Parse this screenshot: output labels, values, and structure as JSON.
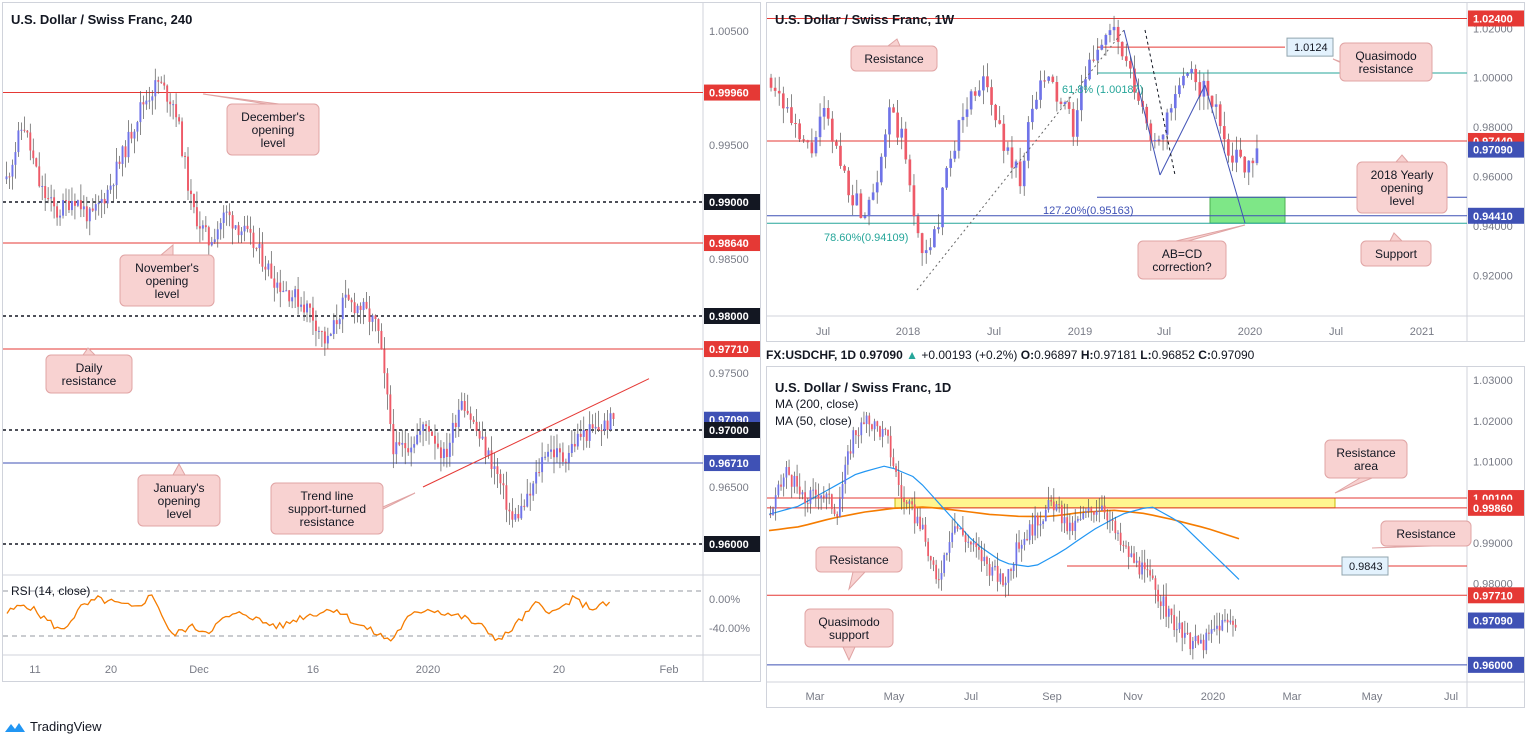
{
  "colors": {
    "candle_up": "#6f73e8",
    "candle_down": "#ee5a68",
    "red_line": "#e53935",
    "blue_line": "#3f51b5",
    "callout_bg": "#f8d2d1",
    "callout_border": "#e0a4a4",
    "rsi": "#f57c00",
    "ma200": "#f57c00",
    "ma50": "#2196f3",
    "green_zone": "#7ee787",
    "yellow_zone": "#fff68f"
  },
  "panel_left": {
    "title": "U.S. Dollar / Swiss Franc, 240",
    "price_axis": [
      "1.00500",
      "0.99500",
      "0.98500",
      "0.97500",
      "0.96500"
    ],
    "x_axis": [
      "11",
      "20",
      "Dec",
      "16",
      "2020",
      "20",
      "Feb"
    ],
    "price_tags": [
      {
        "text": "0.99960",
        "bg": "#e53935"
      },
      {
        "text": "0.99000",
        "bg": "#131722"
      },
      {
        "text": "0.98640",
        "bg": "#e53935"
      },
      {
        "text": "0.98000",
        "bg": "#131722"
      },
      {
        "text": "0.97710",
        "bg": "#e53935"
      },
      {
        "text": "0.97090",
        "bg": "#3f51b5"
      },
      {
        "text": "0.97000",
        "bg": "#131722"
      },
      {
        "text": "0.96710",
        "bg": "#3f51b5"
      },
      {
        "text": "0.96000",
        "bg": "#131722"
      }
    ],
    "callouts": [
      {
        "lines": [
          "December's",
          "opening",
          "level"
        ]
      },
      {
        "lines": [
          "November's",
          "opening",
          "level"
        ]
      },
      {
        "lines": [
          "Daily",
          "resistance"
        ]
      },
      {
        "lines": [
          "January's",
          "opening",
          "level"
        ]
      },
      {
        "lines": [
          "Trend line",
          "support-turned",
          "resistance"
        ]
      }
    ],
    "rsi": {
      "label": "RSI (14, close)",
      "axis": [
        "0.00%",
        "-40.00%"
      ]
    }
  },
  "panel_weekly": {
    "title": "U.S. Dollar / Swiss Franc, 1W",
    "price_axis": [
      "1.02000",
      "1.00000",
      "0.98000",
      "0.96000",
      "0.94000",
      "0.92000"
    ],
    "x_axis": [
      "Jul",
      "2018",
      "Jul",
      "2019",
      "Jul",
      "2020",
      "Jul",
      "2021"
    ],
    "price_tags": [
      {
        "text": "1.02400",
        "bg": "#e53935"
      },
      {
        "text": "0.97440",
        "bg": "#e53935"
      },
      {
        "text": "0.97090",
        "bg": "#3f51b5"
      },
      {
        "text": "0.94410",
        "bg": "#3f51b5"
      }
    ],
    "callouts": [
      {
        "lines": [
          "Resistance"
        ]
      },
      {
        "lines": [
          "Quasimodo",
          "resistance"
        ]
      },
      {
        "lines": [
          "2018 Yearly",
          "opening",
          "level"
        ]
      },
      {
        "lines": [
          "AB=CD",
          "correction?"
        ]
      },
      {
        "lines": [
          "Support"
        ]
      }
    ],
    "fib_labels": [
      "61.8% (1.00187)",
      "127.20%(0.95163)",
      "78.60%(0.94109)"
    ],
    "box_label": "1.0124"
  },
  "infobar": {
    "symbol": "FX:USDCHF, 1D",
    "last": "0.97090",
    "change": "+0.00193 (+0.2%)",
    "o": "0.96897",
    "h": "0.97181",
    "l": "0.96852",
    "c": "0.97090"
  },
  "panel_daily": {
    "title": "U.S. Dollar / Swiss Franc, 1D",
    "ma200": "MA (200, close)",
    "ma50": "MA (50, close)",
    "price_axis": [
      "1.03000",
      "1.02000",
      "1.01000",
      "0.99000",
      "0.98000"
    ],
    "x_axis": [
      "Mar",
      "May",
      "Jul",
      "Sep",
      "Nov",
      "2020",
      "Mar",
      "May",
      "Jul"
    ],
    "price_tags": [
      {
        "text": "1.00100",
        "bg": "#e53935"
      },
      {
        "text": "0.99860",
        "bg": "#e53935"
      },
      {
        "text": "0.97710",
        "bg": "#e53935"
      },
      {
        "text": "0.97090",
        "bg": "#3f51b5"
      },
      {
        "text": "0.96000",
        "bg": "#3f51b5"
      }
    ],
    "callouts": [
      {
        "lines": [
          "Resistance",
          "area"
        ]
      },
      {
        "lines": [
          "Resistance"
        ]
      },
      {
        "lines": [
          "Resistance"
        ]
      },
      {
        "lines": [
          "Quasimodo",
          "support"
        ]
      }
    ],
    "box_label": "0.9843"
  },
  "chart_data": [
    {
      "type": "candlestick",
      "title": "U.S. Dollar / Swiss Franc, 240",
      "ylim": [
        0.959,
        1.0065
      ],
      "levels": [
        0.9996,
        0.99,
        0.9864,
        0.98,
        0.9771,
        0.97,
        0.9671,
        0.96
      ],
      "last": 0.9709
    },
    {
      "type": "candlestick",
      "title": "U.S. Dollar / Swiss Franc, 1W",
      "ylim": [
        0.912,
        1.027
      ],
      "levels": [
        1.024,
        1.0124,
        1.00187,
        0.9744,
        0.95163,
        0.9441,
        0.94109
      ],
      "last": 0.9709
    },
    {
      "type": "candlestick",
      "title": "U.S. Dollar / Swiss Franc, 1D",
      "ylim": [
        0.958,
        1.031
      ],
      "levels": [
        1.001,
        0.9986,
        0.9843,
        0.9771,
        0.96
      ],
      "last": 0.9709
    }
  ],
  "footer": {
    "brand": "TradingView"
  }
}
